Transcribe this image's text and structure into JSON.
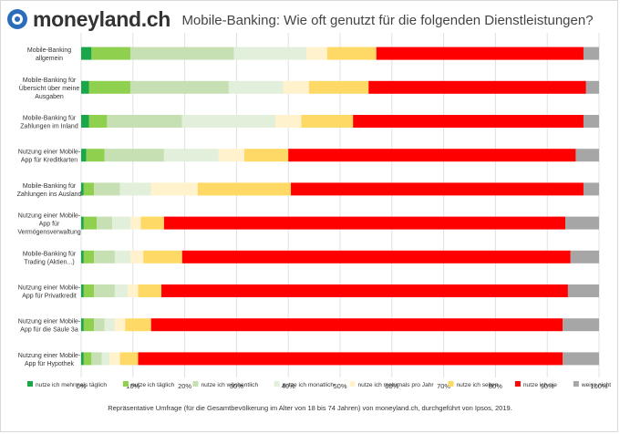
{
  "header": {
    "logo_text": "moneyland.ch",
    "logo_icon": "moneyland-logo-icon"
  },
  "footnote": "Repräsentative Umfrage (für die Gesamtbevölkerung im Alter von 18 bis 74 Jahren) von moneyland.ch, durchgeführt von Ipsos, 2019.",
  "chart_data": {
    "type": "bar",
    "orientation": "horizontal",
    "stacked": "percent",
    "title": "Mobile-Banking: Wie oft genutzt für die folgenden Dienstleistungen?",
    "xlabel": "",
    "ylabel": "",
    "xlim": [
      0,
      100
    ],
    "x_ticks": [
      "0%",
      "10%",
      "20%",
      "30%",
      "40%",
      "50%",
      "60%",
      "70%",
      "80%",
      "90%",
      "100%"
    ],
    "grid": true,
    "legend_position": "bottom",
    "categories": [
      [
        "Mobile-Banking",
        "allgemein"
      ],
      [
        "Mobile-Banking für",
        "Übersicht über meine",
        "Ausgaben"
      ],
      [
        "Mobile-Banking für",
        "Zahlungen im Inland"
      ],
      [
        "Nutzung einer Mobile-",
        "App für Kreditkarten"
      ],
      [
        "Mobile-Banking für",
        "Zahlungen ins Ausland"
      ],
      [
        "Nutzung einer Mobile-",
        "App für",
        "Vermögensverwaltung"
      ],
      [
        "Mobile-Banking für",
        "Trading (Aktien...)"
      ],
      [
        "Nutzung einer Mobile-",
        "App für Privatkredit"
      ],
      [
        "Nutzung einer Mobile-",
        "App für die Säule 3a"
      ],
      [
        "Nutzung einer Mobile-",
        "App für Hypothek"
      ]
    ],
    "series": [
      {
        "name": "nutze ich mehrmals täglich",
        "color": "#1aa64a",
        "values": [
          2,
          1.5,
          1.5,
          1,
          0.5,
          0.5,
          0.5,
          0.5,
          0.5,
          0.5
        ]
      },
      {
        "name": "nutze ich täglich",
        "color": "#8fd14f",
        "values": [
          7.5,
          8,
          3.5,
          3.5,
          2,
          2.5,
          2,
          2,
          2,
          1.5
        ]
      },
      {
        "name": "nutze ich wöchentlich",
        "color": "#c6e0b4",
        "values": [
          20,
          19,
          14.5,
          11.5,
          5,
          3,
          4,
          4,
          2,
          2
        ]
      },
      {
        "name": "nutze ich monatlich",
        "color": "#e2efda",
        "values": [
          14,
          10.5,
          18,
          10.5,
          6,
          3.5,
          3,
          2.5,
          2,
          1.5
        ]
      },
      {
        "name": "nutze ich mehrmals pro Jahr",
        "color": "#fff2cc",
        "values": [
          4,
          5,
          5,
          5,
          9,
          2,
          2.5,
          2,
          2,
          2
        ]
      },
      {
        "name": "nutze ich selten",
        "color": "#ffd966",
        "values": [
          9.5,
          11.5,
          10,
          8.5,
          18,
          4.5,
          7.5,
          4.5,
          5,
          3.5
        ]
      },
      {
        "name": "nutze ich nie",
        "color": "#ff0000",
        "values": [
          40,
          42,
          44.5,
          55.5,
          56.5,
          77.5,
          75,
          78.5,
          79.5,
          82
        ]
      },
      {
        "name": "weiss nicht",
        "color": "#a6a6a6",
        "values": [
          3,
          2.5,
          3,
          4.5,
          3,
          6.5,
          5.5,
          6,
          7,
          7
        ]
      }
    ]
  }
}
